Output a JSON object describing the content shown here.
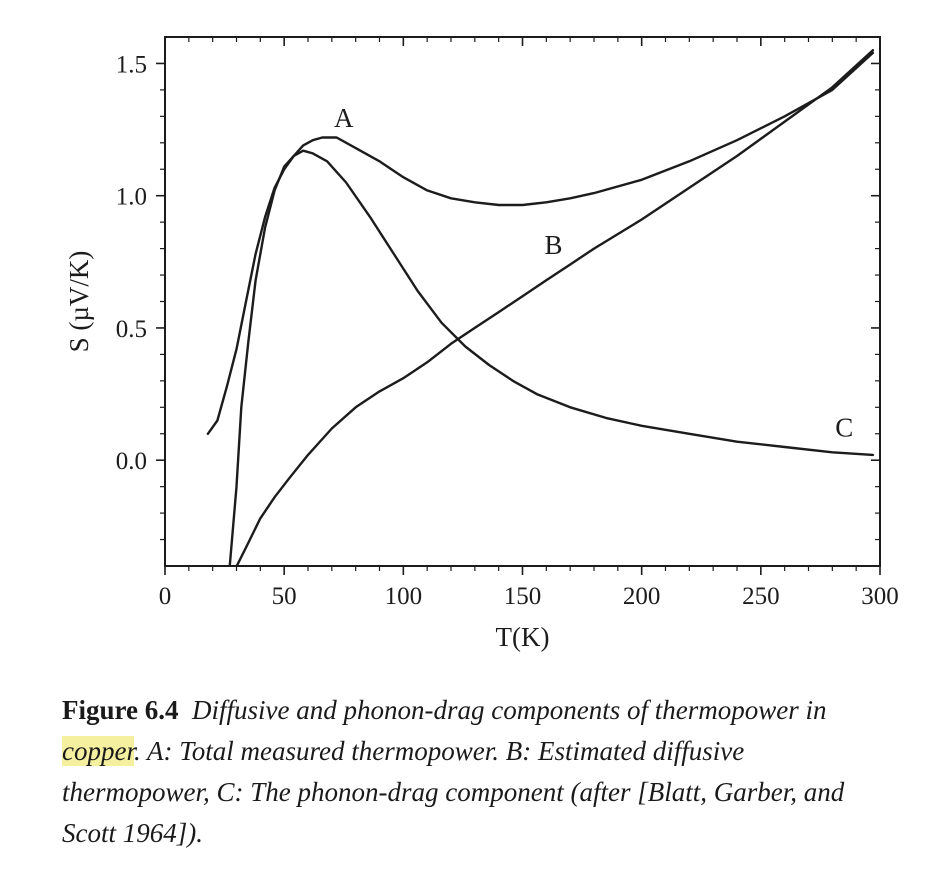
{
  "chart_data": {
    "type": "line",
    "xlabel": "T(K)",
    "ylabel": "S (µV/K)",
    "xlim": [
      0,
      300
    ],
    "ylim": [
      -0.4,
      1.6
    ],
    "x_ticks": [
      "0",
      "50",
      "100",
      "150",
      "200",
      "250",
      "300"
    ],
    "y_ticks": [
      "1.5",
      "1.0",
      "0.5",
      "0.0"
    ],
    "grid": false,
    "series": [
      {
        "name": "A",
        "label_at": [
          75,
          1.26
        ],
        "points": [
          [
            18,
            0.1
          ],
          [
            22,
            0.15
          ],
          [
            26,
            0.28
          ],
          [
            30,
            0.42
          ],
          [
            34,
            0.6
          ],
          [
            38,
            0.78
          ],
          [
            42,
            0.92
          ],
          [
            46,
            1.03
          ],
          [
            50,
            1.1
          ],
          [
            54,
            1.15
          ],
          [
            58,
            1.19
          ],
          [
            62,
            1.21
          ],
          [
            66,
            1.22
          ],
          [
            72,
            1.22
          ],
          [
            80,
            1.18
          ],
          [
            90,
            1.13
          ],
          [
            100,
            1.07
          ],
          [
            110,
            1.02
          ],
          [
            120,
            0.99
          ],
          [
            130,
            0.975
          ],
          [
            140,
            0.965
          ],
          [
            150,
            0.965
          ],
          [
            160,
            0.975
          ],
          [
            170,
            0.99
          ],
          [
            180,
            1.01
          ],
          [
            200,
            1.06
          ],
          [
            220,
            1.13
          ],
          [
            240,
            1.21
          ],
          [
            260,
            1.3
          ],
          [
            280,
            1.4
          ],
          [
            297,
            1.54
          ]
        ]
      },
      {
        "name": "B",
        "label_at": [
          163,
          0.78
        ],
        "points": [
          [
            29,
            -0.42
          ],
          [
            34,
            -0.33
          ],
          [
            40,
            -0.22
          ],
          [
            46,
            -0.14
          ],
          [
            52,
            -0.07
          ],
          [
            60,
            0.02
          ],
          [
            70,
            0.12
          ],
          [
            80,
            0.2
          ],
          [
            90,
            0.26
          ],
          [
            100,
            0.31
          ],
          [
            110,
            0.37
          ],
          [
            120,
            0.44
          ],
          [
            130,
            0.5
          ],
          [
            140,
            0.56
          ],
          [
            150,
            0.62
          ],
          [
            160,
            0.68
          ],
          [
            170,
            0.74
          ],
          [
            180,
            0.8
          ],
          [
            200,
            0.91
          ],
          [
            220,
            1.03
          ],
          [
            240,
            1.15
          ],
          [
            260,
            1.28
          ],
          [
            280,
            1.41
          ],
          [
            297,
            1.55
          ]
        ]
      },
      {
        "name": "C",
        "label_at": [
          285,
          0.09
        ],
        "points": [
          [
            27,
            -0.42
          ],
          [
            30,
            -0.1
          ],
          [
            32,
            0.2
          ],
          [
            35,
            0.45
          ],
          [
            38,
            0.68
          ],
          [
            42,
            0.88
          ],
          [
            46,
            1.02
          ],
          [
            50,
            1.11
          ],
          [
            54,
            1.15
          ],
          [
            58,
            1.17
          ],
          [
            62,
            1.16
          ],
          [
            68,
            1.13
          ],
          [
            76,
            1.05
          ],
          [
            86,
            0.92
          ],
          [
            96,
            0.78
          ],
          [
            106,
            0.64
          ],
          [
            116,
            0.52
          ],
          [
            126,
            0.43
          ],
          [
            136,
            0.36
          ],
          [
            146,
            0.3
          ],
          [
            156,
            0.25
          ],
          [
            170,
            0.2
          ],
          [
            185,
            0.16
          ],
          [
            200,
            0.13
          ],
          [
            220,
            0.1
          ],
          [
            240,
            0.07
          ],
          [
            260,
            0.05
          ],
          [
            280,
            0.03
          ],
          [
            297,
            0.02
          ]
        ]
      }
    ]
  },
  "caption": {
    "label": "Figure 6.4",
    "text_1": "Diffusive and phonon-drag components of thermopower in ",
    "highlight": "copper",
    "text_2": ". A: Total measured thermopower. B: Estimated diffusive thermopower, C: The phonon-drag component (after [Blatt, Garber, and Scott 1964])."
  },
  "colors": {
    "line": "#1c1c1c",
    "highlight": "#f4f0a0"
  }
}
